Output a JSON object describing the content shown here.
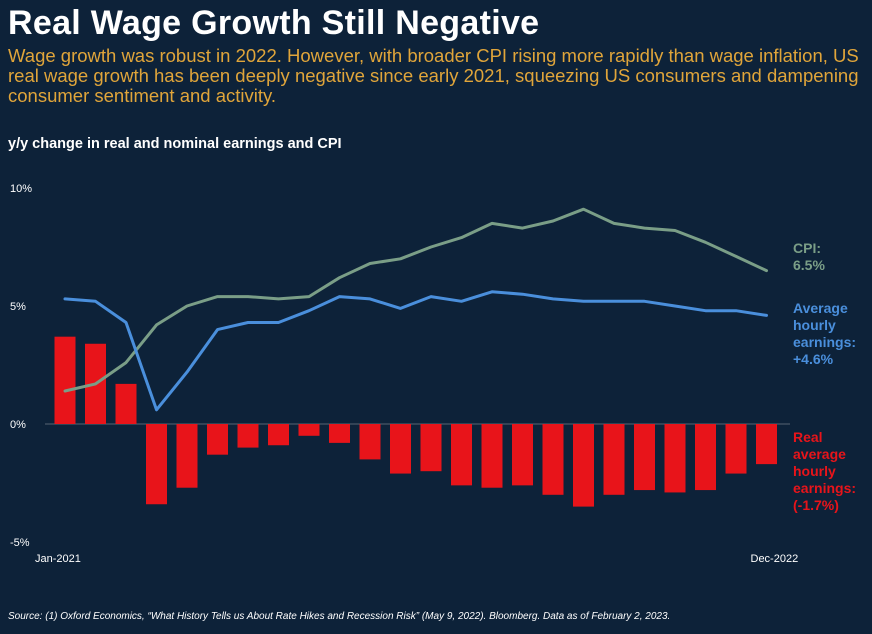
{
  "header": {
    "title": "Real Wage Growth Still Negative",
    "subtitle": "Wage growth was robust in 2022. However, with broader CPI rising more rapidly than wage inflation, US real wage growth has been deeply negative since early 2021, squeezing US consumers and dampening consumer sentiment and activity."
  },
  "chart_data": {
    "type": "line+bar",
    "title": "y/y change in real and nominal earnings and CPI",
    "x_labels": [
      "Jan-2021",
      "Dec-2022"
    ],
    "x": [
      "Jan-2021",
      "Feb-2021",
      "Mar-2021",
      "Apr-2021",
      "May-2021",
      "Jun-2021",
      "Jul-2021",
      "Aug-2021",
      "Sep-2021",
      "Oct-2021",
      "Nov-2021",
      "Dec-2021",
      "Jan-2022",
      "Feb-2022",
      "Mar-2022",
      "Apr-2022",
      "May-2022",
      "Jun-2022",
      "Jul-2022",
      "Aug-2022",
      "Sep-2022",
      "Oct-2022",
      "Nov-2022",
      "Dec-2022"
    ],
    "y_ticks": [
      "10%",
      "5%",
      "0%",
      "-5%"
    ],
    "y_tick_values": [
      10,
      5,
      0,
      -5
    ],
    "ylim": [
      -5,
      10
    ],
    "grid": false,
    "series": [
      {
        "name": "Real average hourly earnings",
        "kind": "bar",
        "color": "#e8141a",
        "end_label": [
          "Real",
          "average",
          "hourly",
          "earnings:",
          "(-1.7%)"
        ],
        "values": [
          3.7,
          3.4,
          1.7,
          -3.4,
          -2.7,
          -1.3,
          -1.0,
          -0.9,
          -0.5,
          -0.8,
          -1.5,
          -2.1,
          -2.0,
          -2.6,
          -2.7,
          -2.6,
          -3.0,
          -3.5,
          -3.0,
          -2.8,
          -2.9,
          -2.8,
          -2.1,
          -1.7
        ]
      },
      {
        "name": "CPI",
        "kind": "line",
        "color": "#7a9e87",
        "end_label": [
          "CPI:",
          "6.5%"
        ],
        "values": [
          1.4,
          1.7,
          2.6,
          4.2,
          5.0,
          5.4,
          5.4,
          5.3,
          5.4,
          6.2,
          6.8,
          7.0,
          7.5,
          7.9,
          8.5,
          8.3,
          8.6,
          9.1,
          8.5,
          8.3,
          8.2,
          7.7,
          7.1,
          6.5
        ]
      },
      {
        "name": "Average hourly earnings",
        "kind": "line",
        "color": "#4a8fdc",
        "end_label": [
          "Average",
          "hourly",
          "earnings:",
          "+4.6%"
        ],
        "values": [
          5.3,
          5.2,
          4.3,
          0.6,
          2.2,
          4.0,
          4.3,
          4.3,
          4.8,
          5.4,
          5.3,
          4.9,
          5.4,
          5.2,
          5.6,
          5.5,
          5.3,
          5.2,
          5.2,
          5.2,
          5.0,
          4.8,
          4.8,
          4.6
        ]
      }
    ]
  },
  "footer": {
    "source": "Source: (1) Oxford Economics, “What History Tells us About Rate Hikes and Recession Risk” (May 9, 2022). Bloomberg. Data as of February 2, 2023."
  }
}
